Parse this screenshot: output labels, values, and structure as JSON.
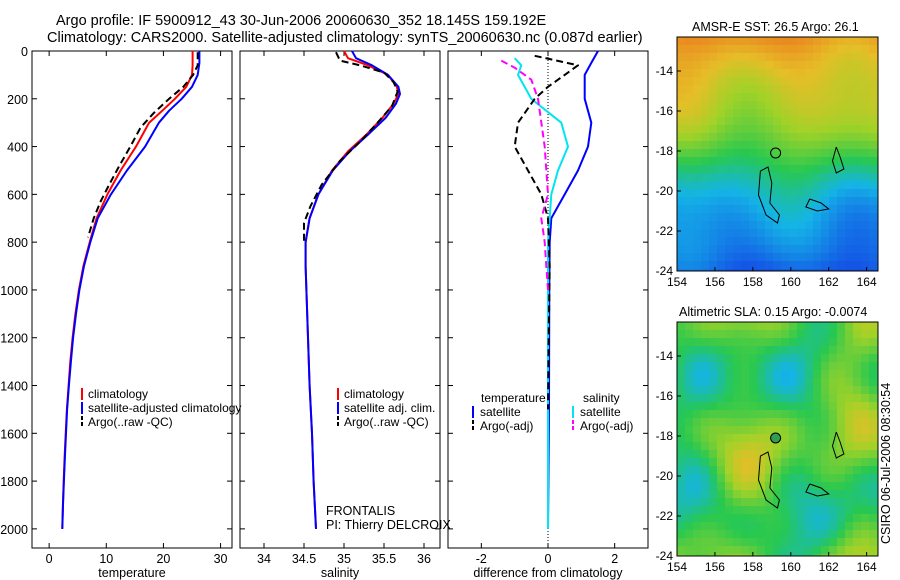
{
  "header": {
    "line1": "Argo profile: IF 5900912_43 30-Jun-2006 20060630_352 18.145S 159.192E",
    "line2": "Climatology: CARS2000. Satellite-adjusted climatology: synTS_20060630.nc (0.087d earlier)"
  },
  "side_stamp": "CSIRO 06-Jul-2006 08:30:54",
  "credit": {
    "program": "FRONTALIS",
    "pi": "PI: Thierry DELCROIX"
  },
  "colors": {
    "climatology": "#ff0000",
    "satellite": "#0000ff",
    "argo": "#000000",
    "sal_satellite": "#00e5ee",
    "sal_argo": "#ff00ff"
  },
  "chart_data": [
    {
      "id": "temperature",
      "type": "line",
      "xlabel": "temperature",
      "ylabel": "",
      "xlim": [
        -3,
        32
      ],
      "ylim": [
        2080,
        0
      ],
      "y_inverted": true,
      "xticks": [
        0,
        10,
        20,
        30
      ],
      "yticks": [
        0,
        200,
        400,
        600,
        800,
        1000,
        1200,
        1400,
        1600,
        1800,
        2000
      ],
      "legend": [
        "climatology",
        "satellite-adjusted climatology",
        "Argo(..raw -QC)"
      ],
      "series": [
        {
          "name": "climatology",
          "color": "#ff0000",
          "dash": false,
          "points": [
            [
              25.1,
              0
            ],
            [
              25.1,
              60
            ],
            [
              25.0,
              100
            ],
            [
              24.0,
              150
            ],
            [
              22.0,
              200
            ],
            [
              19.8,
              250
            ],
            [
              17.5,
              300
            ],
            [
              15.2,
              400
            ],
            [
              12.5,
              500
            ],
            [
              10.2,
              600
            ],
            [
              8.3,
              700
            ],
            [
              7.1,
              800
            ],
            [
              6.0,
              900
            ],
            [
              5.2,
              1000
            ],
            [
              4.6,
              1100
            ],
            [
              4.1,
              1200
            ],
            [
              3.7,
              1300
            ],
            [
              3.4,
              1400
            ],
            [
              3.1,
              1500
            ],
            [
              2.9,
              1600
            ],
            [
              2.7,
              1700
            ],
            [
              2.55,
              1800
            ],
            [
              2.4,
              1900
            ],
            [
              2.3,
              2000
            ]
          ]
        },
        {
          "name": "satellite-adjusted climatology",
          "color": "#0000ff",
          "dash": false,
          "points": [
            [
              26.3,
              0
            ],
            [
              26.3,
              50
            ],
            [
              26.0,
              100
            ],
            [
              25.0,
              150
            ],
            [
              23.2,
              200
            ],
            [
              21.0,
              250
            ],
            [
              19.2,
              300
            ],
            [
              16.8,
              400
            ],
            [
              13.6,
              500
            ],
            [
              10.8,
              600
            ],
            [
              8.5,
              700
            ],
            [
              7.2,
              800
            ],
            [
              6.1,
              900
            ],
            [
              5.3,
              1000
            ],
            [
              4.7,
              1100
            ],
            [
              4.2,
              1200
            ],
            [
              3.8,
              1300
            ],
            [
              3.45,
              1400
            ],
            [
              3.15,
              1500
            ],
            [
              2.95,
              1600
            ],
            [
              2.75,
              1700
            ],
            [
              2.58,
              1800
            ],
            [
              2.42,
              1900
            ],
            [
              2.3,
              2000
            ]
          ]
        },
        {
          "name": "Argo(..raw -QC)",
          "color": "#000000",
          "dash": true,
          "points": [
            [
              26.0,
              5
            ],
            [
              26.0,
              60
            ],
            [
              25.2,
              100
            ],
            [
              23.5,
              150
            ],
            [
              21.0,
              200
            ],
            [
              18.3,
              260
            ],
            [
              16.0,
              320
            ],
            [
              14.2,
              400
            ],
            [
              12.3,
              480
            ],
            [
              10.5,
              560
            ],
            [
              9.0,
              630
            ],
            [
              7.8,
              700
            ],
            [
              6.8,
              780
            ]
          ]
        }
      ]
    },
    {
      "id": "salinity",
      "type": "line",
      "xlabel": "salinity",
      "ylabel": "",
      "xlim": [
        33.7,
        36.2
      ],
      "ylim": [
        2080,
        0
      ],
      "y_inverted": true,
      "xticks": [
        34,
        34.5,
        35,
        35.5,
        36
      ],
      "xticklabels": [
        "34",
        "34.5",
        "35",
        "35.5",
        "36"
      ],
      "legend": [
        "climatology",
        "satellite adj. clim.",
        "Argo(..raw -QC)"
      ],
      "series": [
        {
          "name": "climatology",
          "color": "#ff0000",
          "dash": false,
          "points": [
            [
              35.0,
              0
            ],
            [
              35.05,
              30
            ],
            [
              35.3,
              60
            ],
            [
              35.55,
              100
            ],
            [
              35.66,
              150
            ],
            [
              35.68,
              180
            ],
            [
              35.62,
              220
            ],
            [
              35.48,
              280
            ],
            [
              35.28,
              350
            ],
            [
              35.05,
              420
            ],
            [
              34.85,
              500
            ],
            [
              34.68,
              600
            ],
            [
              34.57,
              700
            ],
            [
              34.52,
              800
            ],
            [
              34.52,
              900
            ],
            [
              34.53,
              1000
            ],
            [
              34.55,
              1200
            ],
            [
              34.57,
              1400
            ],
            [
              34.6,
              1600
            ],
            [
              34.62,
              1800
            ],
            [
              34.65,
              2000
            ]
          ]
        },
        {
          "name": "satellite adj. clim.",
          "color": "#0000ff",
          "dash": false,
          "points": [
            [
              35.1,
              0
            ],
            [
              35.15,
              30
            ],
            [
              35.35,
              60
            ],
            [
              35.55,
              100
            ],
            [
              35.68,
              150
            ],
            [
              35.7,
              180
            ],
            [
              35.65,
              220
            ],
            [
              35.52,
              280
            ],
            [
              35.3,
              350
            ],
            [
              35.07,
              420
            ],
            [
              34.86,
              500
            ],
            [
              34.68,
              600
            ],
            [
              34.57,
              700
            ],
            [
              34.52,
              800
            ],
            [
              34.52,
              900
            ],
            [
              34.53,
              1000
            ],
            [
              34.55,
              1200
            ],
            [
              34.57,
              1400
            ],
            [
              34.6,
              1600
            ],
            [
              34.62,
              1800
            ],
            [
              34.65,
              2000
            ]
          ]
        },
        {
          "name": "Argo(..raw -QC)",
          "color": "#000000",
          "dash": true,
          "points": [
            [
              34.9,
              5
            ],
            [
              34.95,
              40
            ],
            [
              35.2,
              60
            ],
            [
              35.5,
              90
            ],
            [
              35.62,
              130
            ],
            [
              35.67,
              170
            ],
            [
              35.6,
              230
            ],
            [
              35.42,
              300
            ],
            [
              35.2,
              380
            ],
            [
              34.95,
              460
            ],
            [
              34.72,
              560
            ],
            [
              34.58,
              650
            ],
            [
              34.5,
              720
            ],
            [
              34.5,
              800
            ]
          ]
        }
      ]
    },
    {
      "id": "difference",
      "type": "line",
      "xlabel": "difference from climatology",
      "ylabel": "",
      "xlim": [
        -3.0,
        3.0
      ],
      "ylim": [
        2080,
        0
      ],
      "y_inverted": true,
      "xticks": [
        -2,
        0,
        2
      ],
      "legend_headers": [
        "temperature",
        "salinity"
      ],
      "legend": [
        "satellite",
        "Argo(-adj)",
        "satellite",
        "Argo(-adj)"
      ],
      "series": [
        {
          "name": "temperature satellite",
          "color": "#0000ff",
          "dash": false,
          "points": [
            [
              1.5,
              0
            ],
            [
              1.3,
              50
            ],
            [
              1.1,
              100
            ],
            [
              1.1,
              200
            ],
            [
              1.3,
              300
            ],
            [
              1.2,
              400
            ],
            [
              0.9,
              500
            ],
            [
              0.5,
              600
            ],
            [
              0.1,
              700
            ],
            [
              0.05,
              800
            ],
            [
              0.04,
              1000
            ],
            [
              0.03,
              1500
            ],
            [
              0.0,
              2000
            ]
          ]
        },
        {
          "name": "salinity satellite",
          "color": "#00e5ee",
          "dash": false,
          "points": [
            [
              -1.0,
              30
            ],
            [
              -0.8,
              60
            ],
            [
              -0.9,
              100
            ],
            [
              -0.5,
              200
            ],
            [
              0.4,
              300
            ],
            [
              0.6,
              400
            ],
            [
              0.3,
              500
            ],
            [
              0.1,
              600
            ],
            [
              0.0,
              800
            ],
            [
              0.0,
              2000
            ]
          ]
        },
        {
          "name": "temperature Argo(-adj)",
          "color": "#000000",
          "dash": true,
          "points": [
            [
              -0.4,
              20
            ],
            [
              0.9,
              60
            ],
            [
              0.5,
              100
            ],
            [
              0.0,
              150
            ],
            [
              -0.4,
              200
            ],
            [
              -0.9,
              300
            ],
            [
              -1.0,
              400
            ],
            [
              -0.6,
              500
            ],
            [
              -0.2,
              600
            ],
            [
              0.0,
              700
            ],
            [
              0.05,
              900
            ],
            [
              0.02,
              1200
            ],
            [
              0.0,
              1500
            ]
          ]
        },
        {
          "name": "salinity Argo(-adj)",
          "color": "#ff00ff",
          "dash": true,
          "points": [
            [
              -1.4,
              40
            ],
            [
              -1.0,
              70
            ],
            [
              -0.5,
              120
            ],
            [
              -0.3,
              200
            ],
            [
              -0.1,
              400
            ],
            [
              0.0,
              600
            ],
            [
              -0.2,
              700
            ],
            [
              -0.1,
              800
            ],
            [
              -0.05,
              900
            ],
            [
              0.0,
              1000
            ]
          ]
        }
      ]
    },
    {
      "id": "sst-map",
      "type": "heatmap",
      "title": "AMSR-E SST: 26.5 Argo: 26.1",
      "xlim": [
        154,
        164.6
      ],
      "ylim": [
        -24,
        -12.3
      ],
      "xticks": [
        154,
        156,
        158,
        160,
        162,
        164
      ],
      "yticks": [
        -24,
        -22,
        -20,
        -18,
        -16,
        -14
      ],
      "float_position": {
        "lon": 159.2,
        "lat": -18.1
      }
    },
    {
      "id": "sla-map",
      "type": "heatmap",
      "title": "Altimetric SLA: 0.15 Argo: -0.0074",
      "xlim": [
        154,
        164.6
      ],
      "ylim": [
        -24,
        -12.3
      ],
      "xticks": [
        154,
        156,
        158,
        160,
        162,
        164
      ],
      "yticks": [
        -24,
        -22,
        -20,
        -18,
        -16,
        -14
      ],
      "float_position": {
        "lon": 159.2,
        "lat": -18.1
      }
    }
  ]
}
